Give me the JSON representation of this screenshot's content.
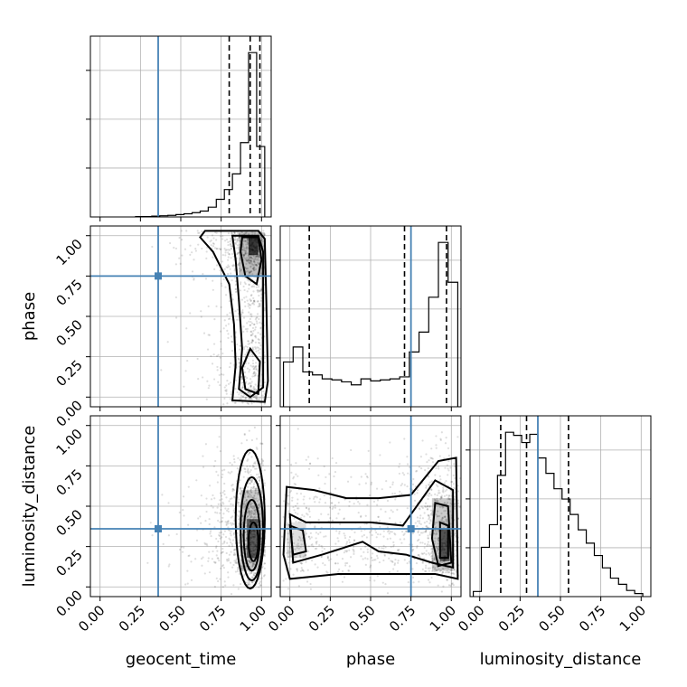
{
  "chart_data": {
    "type": "corner",
    "parameters": [
      "geocent_time",
      "phase",
      "luminosity_distance"
    ],
    "axis_labels": {
      "x": [
        "geocent_time",
        "phase",
        "luminosity_distance"
      ],
      "y": [
        "phase",
        "luminosity_distance"
      ]
    },
    "ticks": {
      "values": [
        0.0,
        0.25,
        0.5,
        0.75,
        1.0
      ],
      "labels": [
        "0.00",
        "0.25",
        "0.50",
        "0.75",
        "1.00"
      ]
    },
    "ranges": {
      "geocent_time": [
        -0.06,
        1.06
      ],
      "phase": [
        -0.06,
        1.06
      ],
      "luminosity_distance": [
        -0.06,
        1.06
      ]
    },
    "truths": {
      "geocent_time": 0.36,
      "phase": 0.75,
      "luminosity_distance": 0.36
    },
    "truth_color": "#4682b4",
    "grid": true,
    "histograms": {
      "geocent_time": {
        "bin_edges": [
          0.22,
          0.27,
          0.32,
          0.37,
          0.42,
          0.47,
          0.52,
          0.57,
          0.62,
          0.67,
          0.72,
          0.77,
          0.82,
          0.87,
          0.92,
          0.97,
          1.02
        ],
        "counts": [
          1,
          1,
          2,
          3,
          4,
          6,
          8,
          11,
          15,
          25,
          45,
          70,
          110,
          190,
          420,
          180
        ],
        "quantiles": [
          0.8,
          0.93,
          0.99
        ]
      },
      "phase": {
        "bin_edges": [
          -0.04,
          0.02,
          0.08,
          0.14,
          0.2,
          0.26,
          0.32,
          0.38,
          0.44,
          0.5,
          0.56,
          0.62,
          0.68,
          0.74,
          0.8,
          0.86,
          0.92,
          0.98,
          1.04
        ],
        "counts": [
          45,
          60,
          35,
          32,
          28,
          27,
          25,
          22,
          28,
          26,
          27,
          28,
          30,
          55,
          75,
          110,
          165,
          125
        ],
        "quantiles": [
          0.12,
          0.71,
          0.97
        ]
      },
      "luminosity_distance": {
        "bin_edges": [
          -0.04,
          0.01,
          0.06,
          0.11,
          0.16,
          0.21,
          0.26,
          0.31,
          0.36,
          0.41,
          0.46,
          0.51,
          0.56,
          0.61,
          0.66,
          0.71,
          0.76,
          0.81,
          0.86,
          0.91,
          0.96,
          1.01
        ],
        "counts": [
          5,
          48,
          70,
          118,
          160,
          157,
          150,
          158,
          135,
          120,
          105,
          95,
          80,
          65,
          52,
          40,
          28,
          18,
          12,
          6,
          3
        ],
        "quantiles": [
          0.13,
          0.29,
          0.55
        ]
      }
    },
    "contour_levels": [
      0.5,
      1.0,
      1.5,
      2.0
    ]
  }
}
